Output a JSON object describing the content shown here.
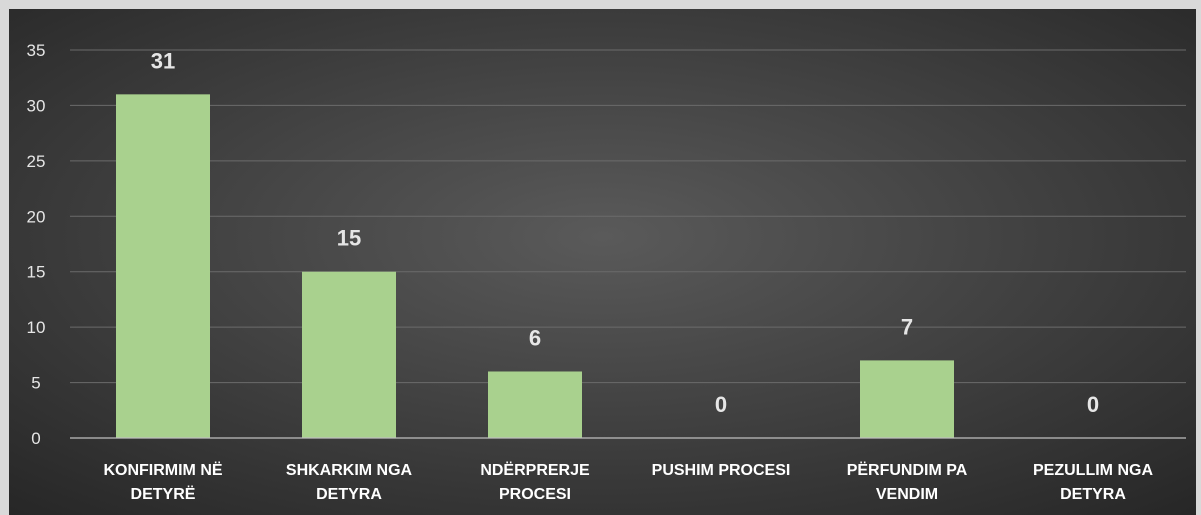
{
  "chart_data": {
    "type": "bar",
    "categories": [
      [
        "KONFIRMIM NË",
        "DETYRË"
      ],
      [
        "SHKARKIM NGA",
        "DETYRA"
      ],
      [
        "NDËRPRERJE",
        "PROCESI"
      ],
      [
        "PUSHIM PROCESI"
      ],
      [
        "PËRFUNDIM PA",
        "VENDIM"
      ],
      [
        "PEZULLIM NGA",
        "DETYRA"
      ]
    ],
    "values": [
      31,
      15,
      6,
      0,
      7,
      0
    ],
    "ylim": [
      0,
      35
    ],
    "yticks": [
      0,
      5,
      10,
      15,
      20,
      25,
      30,
      35
    ],
    "grid": true,
    "legend": "none",
    "title": "",
    "xlabel": "",
    "ylabel": "",
    "colors": {
      "bar": "#a9d18e",
      "plot_bg_center": "#5a5a5a",
      "plot_bg_edge": "#262626",
      "frame": "#d9d9d9",
      "grid": "#6b6b6b",
      "axis": "#bfbfbf"
    }
  }
}
